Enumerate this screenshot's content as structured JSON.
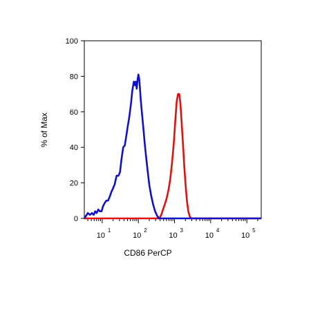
{
  "chart_data": {
    "type": "line",
    "title": "",
    "xlabel": "CD86 PerCP",
    "ylabel": "% of Max",
    "x_scale": "log",
    "xlim": [
      3.2,
      250000
    ],
    "ylim": [
      0,
      100
    ],
    "y_ticks": [
      0,
      20,
      40,
      60,
      80,
      100
    ],
    "y_tick_labels": [
      "0",
      "20",
      "40",
      "60",
      "80",
      "100"
    ],
    "x_ticks": [
      10,
      100,
      1000,
      10000,
      100000
    ],
    "x_tick_labels": [
      {
        "base": "10",
        "exp": "1"
      },
      {
        "base": "10",
        "exp": "2"
      },
      {
        "base": "10",
        "exp": "3"
      },
      {
        "base": "10",
        "exp": "4"
      },
      {
        "base": "10",
        "exp": "5"
      }
    ],
    "grid": false,
    "legend": "none",
    "series": [
      {
        "color": "#1010c8",
        "x": [
          3.2,
          4.0,
          4.6,
          5.2,
          5.8,
          6.4,
          7.0,
          7.8,
          8.6,
          9.6,
          10.6,
          12,
          13,
          14.5,
          16,
          18,
          20,
          22,
          25,
          28,
          31,
          34,
          38,
          42,
          46,
          51,
          56,
          62,
          68,
          75,
          80,
          85,
          90,
          95,
          100,
          105,
          110,
          116,
          122,
          130,
          140,
          150,
          165,
          180,
          200,
          225,
          255,
          290,
          330,
          370,
          420,
          480,
          600,
          1000,
          3000,
          10000,
          100000,
          250000
        ],
        "y": [
          0,
          3,
          2,
          3,
          2,
          4,
          3,
          5,
          4,
          4,
          7,
          9,
          10,
          10,
          12,
          15,
          17,
          19,
          24,
          24,
          26,
          33,
          40,
          41,
          46,
          52,
          57,
          64,
          72,
          77,
          75,
          77,
          73,
          78,
          81,
          79,
          74,
          67,
          62,
          56,
          49,
          42,
          34,
          27,
          19,
          13,
          8,
          4,
          1.5,
          0,
          0,
          0,
          0,
          0,
          0,
          0,
          0,
          0
        ]
      },
      {
        "color": "#e01010",
        "x": [
          3.2,
          100,
          380,
          430,
          480,
          540,
          600,
          680,
          760,
          850,
          950,
          1050,
          1150,
          1250,
          1350,
          1450,
          1550,
          1700,
          1850,
          2000,
          2200,
          2400,
          2650,
          2900,
          3200,
          5000,
          100000,
          250000
        ],
        "y": [
          0,
          0,
          0,
          2,
          5,
          8,
          11,
          16,
          22,
          31,
          42,
          55,
          66,
          70,
          70,
          65,
          56,
          43,
          30,
          20,
          10,
          4,
          1,
          0,
          0,
          0,
          0,
          0
        ]
      }
    ]
  }
}
